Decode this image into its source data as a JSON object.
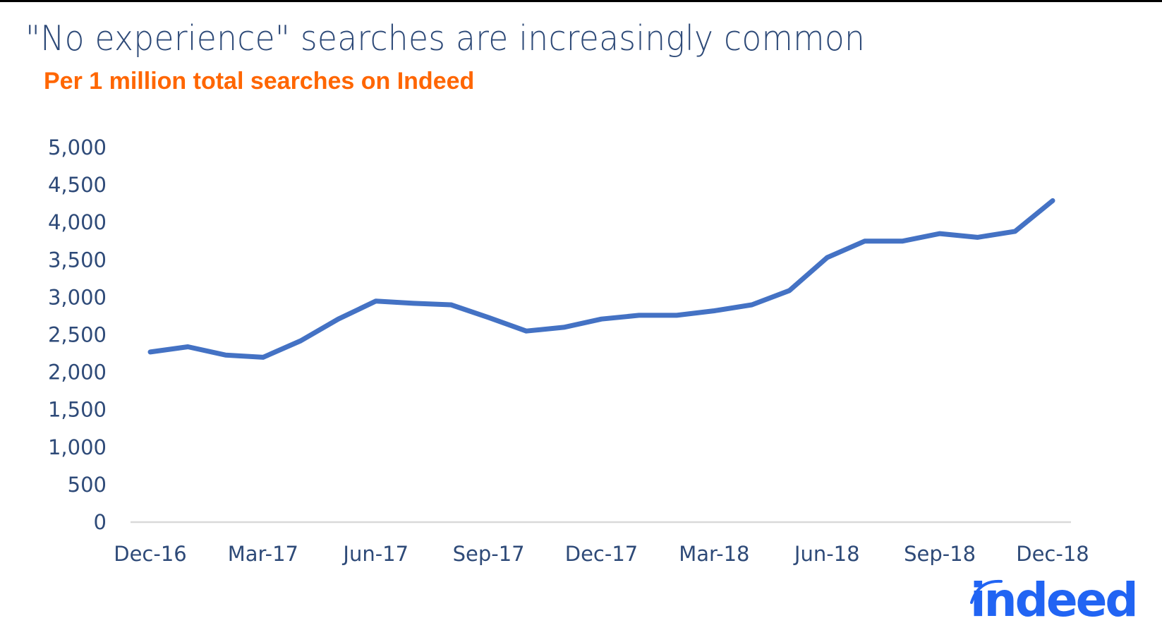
{
  "title": "\"No experience\" searches are increasingly common",
  "subtitle": "Per 1 million total searches on Indeed",
  "logo": {
    "text": "indeed",
    "color": "#2164f3"
  },
  "colors": {
    "title": "#2e4a78",
    "subtitle": "#ff6600",
    "line": "#4472c4",
    "axis": "#d9d9d9"
  },
  "chart_data": {
    "type": "line",
    "title": "\"No experience\" searches are increasingly common",
    "subtitle": "Per 1 million total searches on Indeed",
    "xlabel": "",
    "ylabel": "",
    "ylim": [
      0,
      5000
    ],
    "yticks": [
      0,
      500,
      1000,
      1500,
      2000,
      2500,
      3000,
      3500,
      4000,
      4500,
      5000
    ],
    "ytick_labels": [
      "0",
      "500",
      "1,000",
      "1,500",
      "2,000",
      "2,500",
      "3,000",
      "3,500",
      "4,000",
      "4,500",
      "5,000"
    ],
    "xtick_labels": [
      "Dec-16",
      "Mar-17",
      "Jun-17",
      "Sep-17",
      "Dec-17",
      "Mar-18",
      "Jun-18",
      "Sep-18",
      "Dec-18"
    ],
    "grid": false,
    "legend": null,
    "x": [
      "Dec-16",
      "Jan-17",
      "Feb-17",
      "Mar-17",
      "Apr-17",
      "May-17",
      "Jun-17",
      "Jul-17",
      "Aug-17",
      "Sep-17",
      "Oct-17",
      "Nov-17",
      "Dec-17",
      "Jan-18",
      "Feb-18",
      "Mar-18",
      "Apr-18",
      "May-18",
      "Jun-18",
      "Jul-18",
      "Aug-18",
      "Sep-18",
      "Oct-18",
      "Nov-18",
      "Dec-18"
    ],
    "series": [
      {
        "name": "\"No experience\" searches per 1M",
        "values": [
          2270,
          2340,
          2230,
          2200,
          2420,
          2710,
          2950,
          2920,
          2900,
          2730,
          2550,
          2600,
          2710,
          2760,
          2760,
          2820,
          2900,
          3090,
          3530,
          3750,
          3750,
          3850,
          3800,
          3880,
          4290
        ]
      }
    ]
  }
}
